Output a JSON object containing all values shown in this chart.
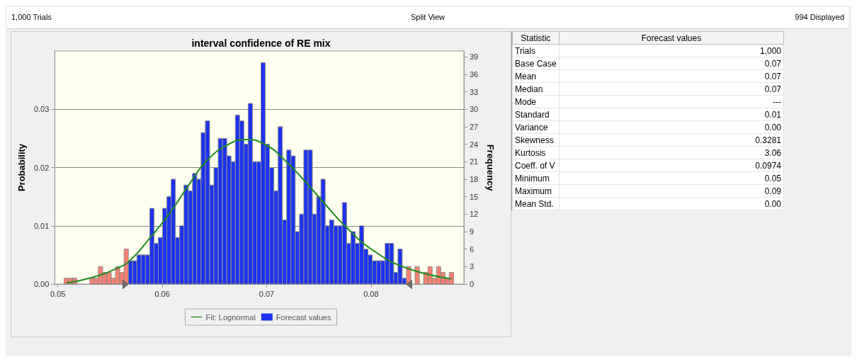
{
  "chart_data": [
    {
      "type": "histogram",
      "title": "interval confidence of RE mix",
      "ylabel": "Probability",
      "y2label": "Frequency",
      "annotations": [
        "1,000 Trials",
        "Split View",
        "994 Displayed"
      ],
      "bins": [
        0.0506,
        0.05101,
        0.05142,
        0.05183,
        0.05224,
        0.05265,
        0.05306,
        0.05347,
        0.05388,
        0.05429,
        0.0547,
        0.05511,
        0.05552,
        0.05593,
        0.05634,
        0.05675,
        0.05716,
        0.05757,
        0.05798,
        0.05839,
        0.0588,
        0.05921,
        0.05962,
        0.06003,
        0.06044,
        0.06085,
        0.06126,
        0.06167,
        0.06208,
        0.06249,
        0.0629,
        0.06331,
        0.06372,
        0.06413,
        0.06454,
        0.06495,
        0.06536,
        0.06577,
        0.06618,
        0.06659,
        0.067,
        0.06741,
        0.06782,
        0.06823,
        0.06864,
        0.06905,
        0.06946,
        0.06987,
        0.07028,
        0.07069,
        0.0711,
        0.07151,
        0.07192,
        0.07233,
        0.07274,
        0.07315,
        0.07356,
        0.07397,
        0.07438,
        0.07479,
        0.0752,
        0.07561,
        0.07602,
        0.07643,
        0.07684,
        0.07725,
        0.07766,
        0.07807,
        0.07848,
        0.07889,
        0.0793,
        0.07971,
        0.08012,
        0.08053,
        0.08094,
        0.08135,
        0.08176,
        0.08217,
        0.08258,
        0.08299,
        0.0834,
        0.08381,
        0.08422,
        0.08463,
        0.08504,
        0.08545,
        0.08586,
        0.08627,
        0.08668,
        0.08709,
        0.0875,
        0.08791
      ],
      "series": [
        {
          "type": "histogram",
          "name": "Forecast values",
          "axis": "y2",
          "color": "#1c32f0",
          "values": [
            1,
            1,
            1,
            null,
            null,
            null,
            1,
            1,
            3,
            2,
            2,
            1,
            3,
            2,
            6,
            4,
            4,
            5,
            5,
            5,
            13,
            7,
            8,
            13,
            15,
            18,
            8,
            10,
            17,
            16,
            19,
            18,
            26,
            28,
            17,
            20,
            25,
            25,
            22,
            21,
            29,
            28,
            24,
            31,
            21,
            21,
            38,
            24,
            20,
            16,
            27,
            11,
            23,
            22,
            9,
            12,
            23,
            23,
            12,
            15,
            18,
            10,
            11,
            10,
            10,
            14,
            7,
            9,
            7,
            10,
            6,
            5,
            4,
            4,
            4,
            7,
            7,
            2,
            6,
            1,
            3,
            null,
            3,
            null,
            2,
            3,
            1,
            3,
            2,
            1,
            2
          ],
          "colors": [
            "#f98070",
            "#f98070",
            "#f98070",
            null,
            null,
            null,
            "#f98070",
            "#f98070",
            "#f98070",
            "#f98070",
            "#f98070",
            "#f98070",
            "#f98070",
            "#f98070",
            "#f98070",
            "#1c32f0",
            "#1c32f0",
            "#1c32f0",
            "#1c32f0",
            "#1c32f0",
            "#1c32f0",
            "#1c32f0",
            "#1c32f0",
            "#1c32f0",
            "#1c32f0",
            "#1c32f0",
            "#1c32f0",
            "#1c32f0",
            "#1c32f0",
            "#1c32f0",
            "#1c32f0",
            "#1c32f0",
            "#1c32f0",
            "#1c32f0",
            "#1c32f0",
            "#1c32f0",
            "#1c32f0",
            "#1c32f0",
            "#1c32f0",
            "#1c32f0",
            "#1c32f0",
            "#1c32f0",
            "#1c32f0",
            "#1c32f0",
            "#1c32f0",
            "#1c32f0",
            "#1c32f0",
            "#1c32f0",
            "#1c32f0",
            "#1c32f0",
            "#1c32f0",
            "#1c32f0",
            "#1c32f0",
            "#1c32f0",
            "#1c32f0",
            "#1c32f0",
            "#1c32f0",
            "#1c32f0",
            "#1c32f0",
            "#1c32f0",
            "#1c32f0",
            "#1c32f0",
            "#1c32f0",
            "#1c32f0",
            "#1c32f0",
            "#1c32f0",
            "#1c32f0",
            "#1c32f0",
            "#1c32f0",
            "#1c32f0",
            "#1c32f0",
            "#1c32f0",
            "#1c32f0",
            "#1c32f0",
            "#1c32f0",
            "#1c32f0",
            "#1c32f0",
            "#1c32f0",
            "#1c32f0",
            "#1c32f0",
            "#f98070",
            null,
            "#f98070",
            null,
            "#f98070",
            "#f98070",
            "#f98070",
            "#f98070",
            "#f98070",
            "#f98070",
            "#f98070"
          ]
        },
        {
          "type": "line",
          "name": "Fit: Lognormal",
          "axis": "y2",
          "color": "#1e8c1e",
          "x": [
            0.05083,
            0.053,
            0.05565,
            0.05694,
            0.05886,
            0.0608,
            0.06272,
            0.06422,
            0.06636,
            0.06807,
            0.07,
            0.07171,
            0.07364,
            0.07556,
            0.07749,
            0.08027,
            0.08348,
            0.08772
          ],
          "values": [
            0.2,
            1.0,
            2.7,
            4.1,
            8.0,
            12.4,
            17.5,
            21.1,
            24.0,
            24.8,
            23.8,
            21.3,
            17.7,
            13.8,
            10.0,
            5.7,
            2.7,
            0.9
          ]
        }
      ],
      "xlim": [
        0.0497,
        0.0889
      ],
      "xticks": [
        0.05,
        0.06,
        0.07,
        0.08
      ],
      "ylim": [
        0,
        0.04
      ],
      "yticks": [
        {
          "value": 0,
          "label": "0.00"
        },
        0.01,
        0.02,
        0.03
      ],
      "y2lim": [
        0,
        40
      ],
      "y2ticks": [
        0,
        3,
        6,
        9,
        12,
        15,
        18,
        21,
        24,
        27,
        30,
        33,
        36,
        39
      ],
      "grid": "y",
      "legend": "bottom"
    },
    {
      "type": "other",
      "annotations": [
        "Statistic",
        "Forecast values"
      ],
      "categories": [
        "Trials",
        "Base Case",
        "Mean",
        "Median",
        "Mode",
        "Standard",
        "Variance",
        "Skewness",
        "Kurtosis",
        "Coeff. of V",
        "Minimum",
        "Maximum",
        "Mean Std."
      ],
      "value_labels": [
        "1,000",
        "0.07",
        "0.07",
        "0.07",
        "---",
        "0.01",
        "0.00",
        "0.3281",
        "3.06",
        "0.0974",
        "0.05",
        "0.09",
        "0.00"
      ]
    }
  ]
}
